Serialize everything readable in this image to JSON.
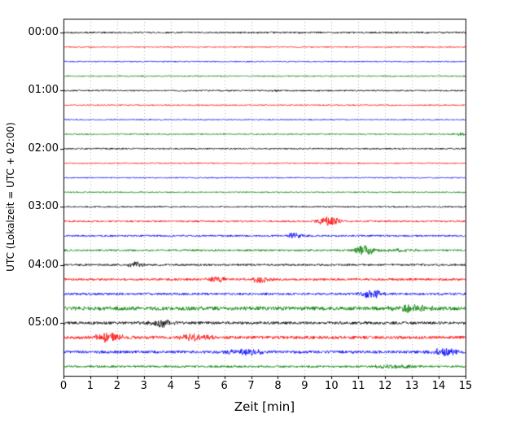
{
  "chart_data": {
    "type": "line",
    "title": "",
    "xlabel": "Zeit  [min]",
    "ylabel": "UTC (Lokalzeit = UTC + 02:00)",
    "xlim": [
      0,
      15
    ],
    "minutes_per_trace": 15,
    "grid": "dotted-vertical",
    "legend": "none",
    "x_ticks": [
      "0",
      "1",
      "2",
      "3",
      "4",
      "5",
      "6",
      "7",
      "8",
      "9",
      "10",
      "11",
      "12",
      "13",
      "14",
      "15"
    ],
    "color_cycle": [
      "#000000",
      "#ff0000",
      "#0000ff",
      "#008000"
    ],
    "traces": [
      {
        "label": "00:00",
        "color": "#000000",
        "noise": 1.1,
        "events": []
      },
      {
        "label": "",
        "color": "#ff0000",
        "noise": 0.7,
        "events": []
      },
      {
        "label": "",
        "color": "#0000ff",
        "noise": 0.7,
        "events": []
      },
      {
        "label": "",
        "color": "#008000",
        "noise": 0.8,
        "events": []
      },
      {
        "label": "01:00",
        "color": "#000000",
        "noise": 0.9,
        "events": [
          {
            "t": 7.9,
            "a": 1.6,
            "w": 0.12
          }
        ]
      },
      {
        "label": "",
        "color": "#ff0000",
        "noise": 0.7,
        "events": []
      },
      {
        "label": "",
        "color": "#0000ff",
        "noise": 0.7,
        "events": []
      },
      {
        "label": "",
        "color": "#008000",
        "noise": 0.8,
        "events": [
          {
            "t": 14.8,
            "a": 1.2,
            "w": 0.25
          }
        ]
      },
      {
        "label": "02:00",
        "color": "#000000",
        "noise": 0.9,
        "events": []
      },
      {
        "label": "",
        "color": "#ff0000",
        "noise": 0.7,
        "events": []
      },
      {
        "label": "",
        "color": "#0000ff",
        "noise": 0.7,
        "events": []
      },
      {
        "label": "",
        "color": "#008000",
        "noise": 0.8,
        "events": []
      },
      {
        "label": "03:00",
        "color": "#000000",
        "noise": 0.9,
        "events": []
      },
      {
        "label": "",
        "color": "#ff0000",
        "noise": 1.1,
        "events": [
          {
            "t": 9.9,
            "a": 5.5,
            "w": 0.3
          }
        ]
      },
      {
        "label": "",
        "color": "#0000ff",
        "noise": 1.1,
        "events": [
          {
            "t": 8.6,
            "a": 4.0,
            "w": 0.22
          }
        ]
      },
      {
        "label": "",
        "color": "#008000",
        "noise": 1.2,
        "events": [
          {
            "t": 11.25,
            "a": 6.5,
            "w": 0.28
          },
          {
            "t": 12.6,
            "a": 2.0,
            "w": 0.55
          }
        ]
      },
      {
        "label": "04:00",
        "color": "#000000",
        "noise": 1.2,
        "events": [
          {
            "t": 2.7,
            "a": 3.2,
            "w": 0.22
          }
        ]
      },
      {
        "label": "",
        "color": "#ff0000",
        "noise": 1.4,
        "events": [
          {
            "t": 5.7,
            "a": 3.6,
            "w": 0.28
          },
          {
            "t": 7.3,
            "a": 3.6,
            "w": 0.3
          }
        ]
      },
      {
        "label": "",
        "color": "#0000ff",
        "noise": 1.4,
        "events": [
          {
            "t": 11.5,
            "a": 5.0,
            "w": 0.28
          }
        ]
      },
      {
        "label": "",
        "color": "#008000",
        "noise": 2.3,
        "events": [
          {
            "t": 12.9,
            "a": 3.8,
            "w": 0.5
          }
        ]
      },
      {
        "label": "05:00",
        "color": "#000000",
        "noise": 1.7,
        "events": [
          {
            "t": 3.6,
            "a": 4.8,
            "w": 0.3
          }
        ]
      },
      {
        "label": "",
        "color": "#ff0000",
        "noise": 1.9,
        "events": [
          {
            "t": 1.7,
            "a": 5.5,
            "w": 0.4
          },
          {
            "t": 4.9,
            "a": 4.0,
            "w": 0.4
          }
        ]
      },
      {
        "label": "",
        "color": "#0000ff",
        "noise": 1.8,
        "events": [
          {
            "t": 6.8,
            "a": 3.2,
            "w": 0.6
          },
          {
            "t": 14.2,
            "a": 4.5,
            "w": 0.3
          }
        ]
      },
      {
        "label": "",
        "color": "#008000",
        "noise": 1.3,
        "events": [
          {
            "t": 12.4,
            "a": 2.2,
            "w": 0.7
          }
        ]
      }
    ]
  }
}
